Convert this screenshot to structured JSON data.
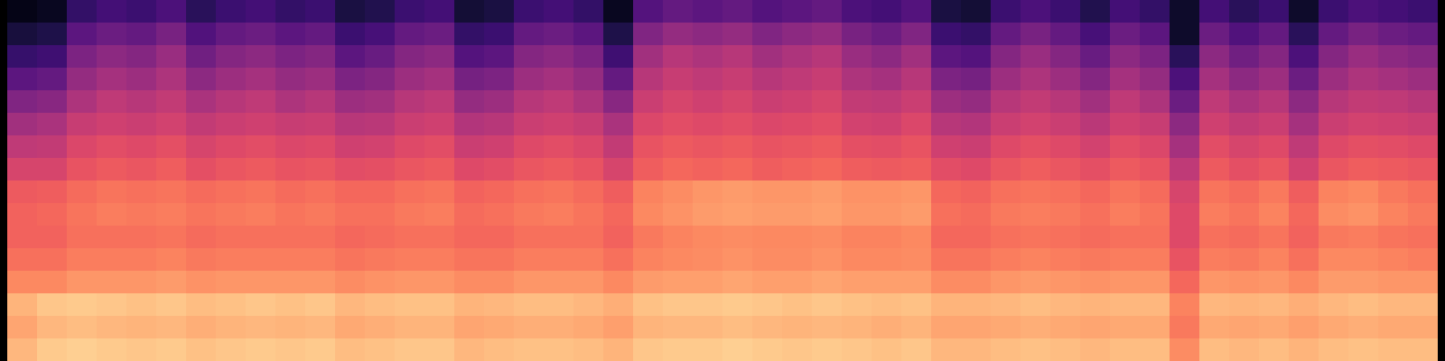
{
  "chart_data": {
    "type": "heatmap",
    "color": "magma",
    "zlim": [
      0,
      1
    ],
    "tick_labels": false,
    "cells": [
      [
        0.04,
        0.06,
        0.18,
        0.22,
        0.2,
        0.24,
        0.16,
        0.2,
        0.22,
        0.18,
        0.2,
        0.12,
        0.14,
        0.2,
        0.22,
        0.1,
        0.12,
        0.2,
        0.22,
        0.18,
        0.06,
        0.26,
        0.3,
        0.28,
        0.3,
        0.26,
        0.28,
        0.3,
        0.24,
        0.22,
        0.26,
        0.12,
        0.1,
        0.2,
        0.24,
        0.2,
        0.14,
        0.22,
        0.18,
        0.08,
        0.22,
        0.16,
        0.2,
        0.08,
        0.2,
        0.24,
        0.22,
        0.2
      ],
      [
        0.11,
        0.13,
        0.28,
        0.32,
        0.3,
        0.35,
        0.25,
        0.3,
        0.32,
        0.28,
        0.3,
        0.2,
        0.23,
        0.3,
        0.32,
        0.18,
        0.2,
        0.3,
        0.32,
        0.28,
        0.13,
        0.37,
        0.42,
        0.4,
        0.42,
        0.37,
        0.4,
        0.42,
        0.35,
        0.32,
        0.37,
        0.2,
        0.18,
        0.3,
        0.35,
        0.3,
        0.23,
        0.32,
        0.28,
        0.08,
        0.32,
        0.25,
        0.3,
        0.16,
        0.3,
        0.35,
        0.32,
        0.3
      ],
      [
        0.19,
        0.21,
        0.36,
        0.4,
        0.38,
        0.43,
        0.33,
        0.38,
        0.4,
        0.36,
        0.38,
        0.28,
        0.31,
        0.38,
        0.4,
        0.26,
        0.28,
        0.38,
        0.4,
        0.36,
        0.21,
        0.45,
        0.5,
        0.48,
        0.5,
        0.45,
        0.48,
        0.5,
        0.43,
        0.4,
        0.45,
        0.28,
        0.26,
        0.38,
        0.43,
        0.38,
        0.31,
        0.4,
        0.36,
        0.16,
        0.4,
        0.33,
        0.38,
        0.24,
        0.38,
        0.43,
        0.4,
        0.38
      ],
      [
        0.28,
        0.3,
        0.42,
        0.46,
        0.44,
        0.48,
        0.4,
        0.44,
        0.46,
        0.42,
        0.44,
        0.36,
        0.38,
        0.44,
        0.46,
        0.34,
        0.36,
        0.44,
        0.46,
        0.42,
        0.3,
        0.5,
        0.54,
        0.52,
        0.54,
        0.5,
        0.52,
        0.54,
        0.48,
        0.46,
        0.5,
        0.36,
        0.34,
        0.44,
        0.48,
        0.44,
        0.38,
        0.46,
        0.42,
        0.24,
        0.46,
        0.4,
        0.44,
        0.32,
        0.44,
        0.48,
        0.46,
        0.44
      ],
      [
        0.37,
        0.39,
        0.48,
        0.52,
        0.5,
        0.53,
        0.47,
        0.5,
        0.52,
        0.48,
        0.5,
        0.44,
        0.45,
        0.5,
        0.52,
        0.42,
        0.44,
        0.5,
        0.52,
        0.48,
        0.39,
        0.55,
        0.58,
        0.56,
        0.58,
        0.55,
        0.56,
        0.58,
        0.53,
        0.52,
        0.55,
        0.44,
        0.42,
        0.5,
        0.53,
        0.5,
        0.45,
        0.52,
        0.48,
        0.32,
        0.52,
        0.47,
        0.5,
        0.4,
        0.5,
        0.53,
        0.52,
        0.5
      ],
      [
        0.45,
        0.47,
        0.54,
        0.56,
        0.55,
        0.57,
        0.53,
        0.55,
        0.56,
        0.54,
        0.55,
        0.5,
        0.51,
        0.55,
        0.56,
        0.49,
        0.5,
        0.55,
        0.56,
        0.54,
        0.47,
        0.59,
        0.61,
        0.6,
        0.61,
        0.59,
        0.6,
        0.61,
        0.57,
        0.56,
        0.59,
        0.5,
        0.49,
        0.55,
        0.57,
        0.55,
        0.51,
        0.56,
        0.54,
        0.4,
        0.56,
        0.53,
        0.55,
        0.46,
        0.55,
        0.57,
        0.56,
        0.55
      ],
      [
        0.52,
        0.53,
        0.59,
        0.61,
        0.6,
        0.62,
        0.58,
        0.6,
        0.61,
        0.59,
        0.6,
        0.56,
        0.57,
        0.6,
        0.61,
        0.55,
        0.56,
        0.6,
        0.61,
        0.59,
        0.53,
        0.63,
        0.65,
        0.64,
        0.65,
        0.63,
        0.64,
        0.65,
        0.62,
        0.61,
        0.63,
        0.56,
        0.55,
        0.6,
        0.62,
        0.6,
        0.57,
        0.61,
        0.59,
        0.46,
        0.61,
        0.58,
        0.6,
        0.52,
        0.6,
        0.62,
        0.61,
        0.6
      ],
      [
        0.58,
        0.58,
        0.63,
        0.65,
        0.64,
        0.66,
        0.62,
        0.64,
        0.65,
        0.63,
        0.64,
        0.61,
        0.62,
        0.64,
        0.65,
        0.6,
        0.61,
        0.64,
        0.65,
        0.63,
        0.58,
        0.66,
        0.68,
        0.67,
        0.68,
        0.66,
        0.67,
        0.68,
        0.66,
        0.65,
        0.66,
        0.61,
        0.6,
        0.64,
        0.66,
        0.64,
        0.62,
        0.65,
        0.63,
        0.52,
        0.65,
        0.62,
        0.64,
        0.57,
        0.64,
        0.66,
        0.65,
        0.64
      ],
      [
        0.65,
        0.66,
        0.69,
        0.71,
        0.7,
        0.71,
        0.69,
        0.7,
        0.71,
        0.69,
        0.7,
        0.68,
        0.68,
        0.7,
        0.71,
        0.67,
        0.68,
        0.7,
        0.71,
        0.69,
        0.66,
        0.74,
        0.76,
        0.78,
        0.79,
        0.78,
        0.78,
        0.79,
        0.77,
        0.77,
        0.78,
        0.68,
        0.67,
        0.7,
        0.71,
        0.7,
        0.68,
        0.71,
        0.69,
        0.58,
        0.71,
        0.69,
        0.72,
        0.66,
        0.74,
        0.75,
        0.72,
        0.7
      ],
      [
        0.67,
        0.68,
        0.71,
        0.73,
        0.72,
        0.73,
        0.71,
        0.72,
        0.73,
        0.71,
        0.72,
        0.7,
        0.7,
        0.72,
        0.73,
        0.69,
        0.7,
        0.72,
        0.73,
        0.71,
        0.68,
        0.75,
        0.77,
        0.79,
        0.8,
        0.79,
        0.79,
        0.8,
        0.78,
        0.78,
        0.79,
        0.7,
        0.69,
        0.72,
        0.73,
        0.72,
        0.7,
        0.73,
        0.71,
        0.6,
        0.73,
        0.71,
        0.74,
        0.68,
        0.76,
        0.77,
        0.74,
        0.72
      ],
      [
        0.67,
        0.67,
        0.7,
        0.7,
        0.7,
        0.71,
        0.69,
        0.7,
        0.7,
        0.7,
        0.7,
        0.68,
        0.69,
        0.7,
        0.7,
        0.68,
        0.68,
        0.7,
        0.7,
        0.7,
        0.67,
        0.72,
        0.74,
        0.75,
        0.76,
        0.75,
        0.75,
        0.76,
        0.74,
        0.74,
        0.75,
        0.68,
        0.68,
        0.7,
        0.71,
        0.7,
        0.69,
        0.7,
        0.7,
        0.6,
        0.7,
        0.69,
        0.71,
        0.67,
        0.72,
        0.73,
        0.71,
        0.7
      ],
      [
        0.7,
        0.7,
        0.73,
        0.73,
        0.73,
        0.74,
        0.72,
        0.73,
        0.73,
        0.73,
        0.73,
        0.71,
        0.72,
        0.73,
        0.73,
        0.71,
        0.71,
        0.73,
        0.73,
        0.73,
        0.7,
        0.74,
        0.75,
        0.76,
        0.77,
        0.76,
        0.76,
        0.77,
        0.75,
        0.75,
        0.76,
        0.71,
        0.71,
        0.73,
        0.74,
        0.73,
        0.72,
        0.73,
        0.73,
        0.63,
        0.73,
        0.72,
        0.74,
        0.7,
        0.75,
        0.75,
        0.74,
        0.73
      ],
      [
        0.75,
        0.75,
        0.78,
        0.78,
        0.78,
        0.79,
        0.77,
        0.78,
        0.78,
        0.78,
        0.78,
        0.76,
        0.77,
        0.78,
        0.78,
        0.76,
        0.76,
        0.78,
        0.78,
        0.78,
        0.75,
        0.79,
        0.8,
        0.8,
        0.81,
        0.8,
        0.8,
        0.81,
        0.8,
        0.8,
        0.8,
        0.76,
        0.76,
        0.78,
        0.79,
        0.78,
        0.77,
        0.78,
        0.78,
        0.68,
        0.78,
        0.77,
        0.78,
        0.75,
        0.79,
        0.79,
        0.78,
        0.78
      ],
      [
        0.84,
        0.88,
        0.89,
        0.88,
        0.87,
        0.88,
        0.86,
        0.87,
        0.88,
        0.87,
        0.88,
        0.85,
        0.86,
        0.87,
        0.87,
        0.84,
        0.85,
        0.86,
        0.86,
        0.85,
        0.83,
        0.87,
        0.88,
        0.88,
        0.89,
        0.88,
        0.87,
        0.88,
        0.87,
        0.86,
        0.87,
        0.84,
        0.84,
        0.85,
        0.86,
        0.85,
        0.84,
        0.85,
        0.85,
        0.74,
        0.85,
        0.84,
        0.85,
        0.83,
        0.85,
        0.86,
        0.85,
        0.85
      ],
      [
        0.81,
        0.85,
        0.86,
        0.85,
        0.84,
        0.85,
        0.83,
        0.84,
        0.85,
        0.84,
        0.85,
        0.82,
        0.83,
        0.84,
        0.84,
        0.81,
        0.82,
        0.83,
        0.83,
        0.82,
        0.8,
        0.84,
        0.85,
        0.85,
        0.86,
        0.85,
        0.84,
        0.85,
        0.84,
        0.83,
        0.84,
        0.81,
        0.81,
        0.82,
        0.83,
        0.82,
        0.81,
        0.82,
        0.82,
        0.72,
        0.82,
        0.81,
        0.82,
        0.8,
        0.82,
        0.83,
        0.82,
        0.82
      ],
      [
        0.85,
        0.89,
        0.9,
        0.89,
        0.88,
        0.89,
        0.87,
        0.88,
        0.89,
        0.88,
        0.89,
        0.86,
        0.87,
        0.88,
        0.88,
        0.85,
        0.86,
        0.87,
        0.87,
        0.86,
        0.84,
        0.88,
        0.89,
        0.89,
        0.9,
        0.89,
        0.88,
        0.89,
        0.88,
        0.87,
        0.88,
        0.85,
        0.85,
        0.86,
        0.87,
        0.86,
        0.85,
        0.86,
        0.86,
        0.76,
        0.86,
        0.85,
        0.86,
        0.84,
        0.86,
        0.87,
        0.86,
        0.86
      ]
    ]
  }
}
